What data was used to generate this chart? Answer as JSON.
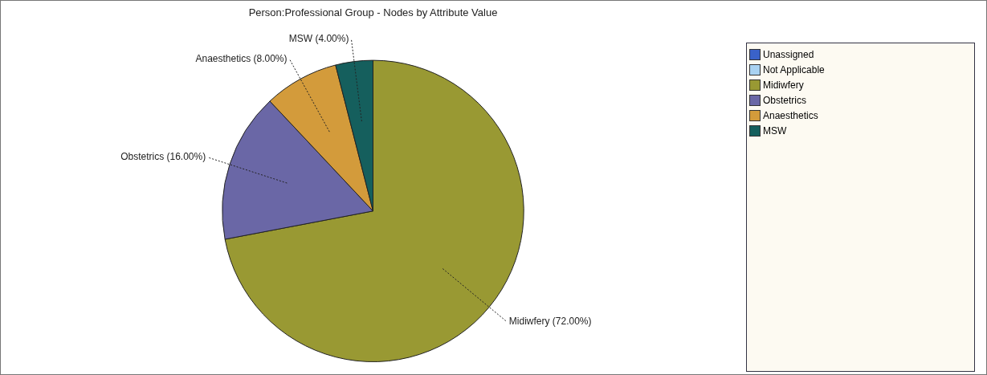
{
  "chart_data": {
    "type": "pie",
    "title": "Person:Professional Group - Nodes by Attribute Value",
    "categories": [
      "Unassigned",
      "Not Applicable",
      "Midiwfery",
      "Obstetrics",
      "Anaesthetics",
      "MSW"
    ],
    "values": [
      0,
      0,
      72,
      16,
      8,
      4
    ],
    "colors": [
      "#3a62c9",
      "#a9d2f2",
      "#999933",
      "#6a67a6",
      "#d39b3b",
      "#155f5d"
    ],
    "value_labels": [
      null,
      null,
      "Midiwfery (72.00%)",
      "Obstetrics (16.00%)",
      "Anaesthetics (8.00%)",
      "MSW (4.00%)"
    ],
    "legend": "right"
  }
}
